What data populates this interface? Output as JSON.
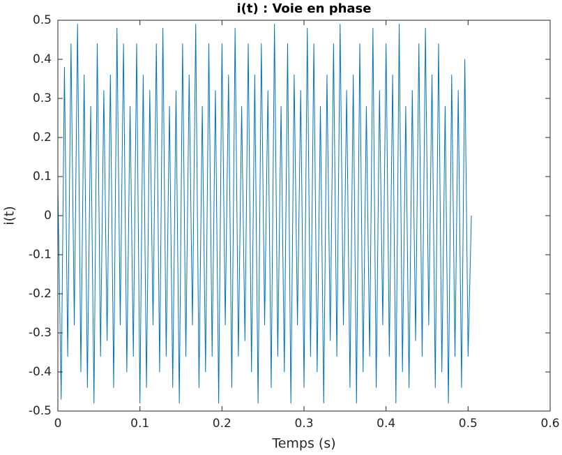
{
  "chart_data": {
    "type": "line",
    "title": "i(t) : Voie en phase",
    "x_label": "Temps (s)",
    "y_label": "i(t)",
    "xlim": [
      0,
      0.6
    ],
    "ylim": [
      -0.5,
      0.5
    ],
    "xticks": [
      0,
      0.1,
      0.2,
      0.3,
      0.4,
      0.5,
      0.6
    ],
    "yticks": [
      -0.5,
      -0.4,
      -0.3,
      -0.2,
      -0.1,
      0,
      0.1,
      0.2,
      0.3,
      0.4,
      0.5
    ],
    "grid": false,
    "x": [
      0,
      0.004,
      0.008,
      0.012,
      0.016,
      0.02,
      0.024,
      0.028,
      0.032,
      0.036,
      0.04,
      0.044,
      0.048,
      0.052,
      0.056,
      0.06,
      0.064,
      0.068,
      0.072,
      0.076,
      0.08,
      0.084,
      0.088,
      0.092,
      0.096,
      0.1,
      0.104,
      0.108,
      0.112,
      0.116,
      0.12,
      0.124,
      0.128,
      0.132,
      0.136,
      0.14,
      0.144,
      0.148,
      0.152,
      0.156,
      0.16,
      0.164,
      0.168,
      0.172,
      0.176,
      0.18,
      0.184,
      0.188,
      0.192,
      0.196,
      0.2,
      0.204,
      0.208,
      0.212,
      0.216,
      0.22,
      0.224,
      0.228,
      0.232,
      0.236,
      0.24,
      0.244,
      0.248,
      0.252,
      0.256,
      0.26,
      0.264,
      0.268,
      0.272,
      0.276,
      0.28,
      0.284,
      0.288,
      0.292,
      0.296,
      0.3,
      0.304,
      0.308,
      0.312,
      0.316,
      0.32,
      0.324,
      0.328,
      0.332,
      0.336,
      0.34,
      0.344,
      0.348,
      0.352,
      0.356,
      0.36,
      0.364,
      0.368,
      0.372,
      0.376,
      0.38,
      0.384,
      0.388,
      0.392,
      0.396,
      0.4,
      0.404,
      0.408,
      0.412,
      0.416,
      0.42,
      0.424,
      0.428,
      0.432,
      0.436,
      0.44,
      0.444,
      0.448,
      0.452,
      0.456,
      0.46,
      0.464,
      0.468,
      0.472,
      0.476,
      0.48,
      0.484,
      0.488,
      0.492,
      0.496,
      0.5,
      0.504
    ],
    "series": [
      {
        "name": "i(t)",
        "color": "#0072bd",
        "values": [
          0.08,
          -0.47,
          0.38,
          -0.36,
          0.44,
          -0.28,
          0.49,
          -0.4,
          0.36,
          -0.44,
          0.28,
          -0.48,
          0.44,
          -0.36,
          0.32,
          -0.32,
          0.36,
          -0.44,
          0.48,
          -0.28,
          0.44,
          -0.4,
          0.28,
          -0.36,
          0.44,
          -0.48,
          0.36,
          -0.44,
          0.32,
          -0.28,
          0.44,
          -0.4,
          0.48,
          -0.36,
          0.28,
          -0.44,
          0.32,
          -0.48,
          0.44,
          -0.36,
          0.36,
          -0.28,
          0.49,
          -0.44,
          0.28,
          -0.4,
          0.44,
          -0.36,
          0.32,
          -0.48,
          0.44,
          -0.28,
          0.36,
          -0.44,
          0.48,
          -0.36,
          0.28,
          -0.32,
          0.44,
          -0.4,
          0.36,
          -0.48,
          0.44,
          -0.28,
          0.32,
          -0.44,
          0.49,
          -0.36,
          0.28,
          -0.4,
          0.44,
          -0.48,
          0.36,
          -0.28,
          0.32,
          -0.44,
          0.48,
          -0.36,
          0.44,
          -0.4,
          0.28,
          -0.48,
          0.36,
          -0.32,
          0.44,
          -0.36,
          0.49,
          -0.28,
          0.32,
          -0.44,
          0.36,
          -0.48,
          0.44,
          -0.4,
          0.28,
          -0.36,
          0.48,
          -0.44,
          0.32,
          -0.28,
          0.44,
          -0.36,
          0.36,
          -0.48,
          0.49,
          -0.4,
          0.28,
          -0.44,
          0.32,
          -0.32,
          0.44,
          -0.36,
          0.48,
          -0.28,
          0.36,
          -0.44,
          0.44,
          -0.4,
          0.28,
          -0.48,
          0.36,
          -0.36,
          0.32,
          -0.44,
          0.4,
          -0.36,
          0.0
        ]
      }
    ]
  }
}
